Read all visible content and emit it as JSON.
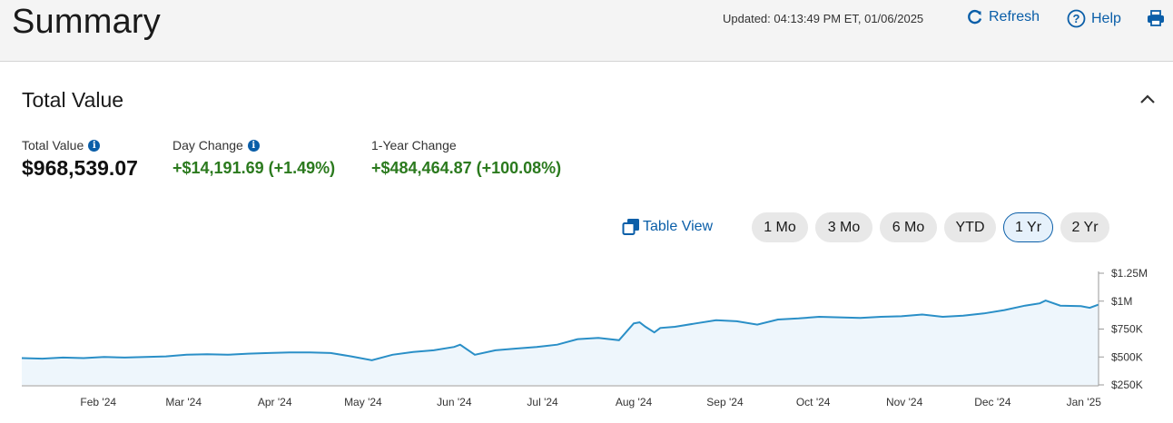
{
  "header": {
    "title": "Summary",
    "updated": "Updated: 04:13:49 PM ET, 01/06/2025",
    "refresh_label": "Refresh",
    "help_label": "Help"
  },
  "section": {
    "title": "Total Value"
  },
  "metrics": {
    "total_label": "Total Value",
    "total_value": "$968,539.07",
    "day_label": "Day Change",
    "day_value": "+$14,191.69 (+1.49%)",
    "year_label": "1-Year Change",
    "year_value": "+$484,464.87 (+100.08%)"
  },
  "controls": {
    "table_view_label": "Table View",
    "ranges": [
      "1 Mo",
      "3 Mo",
      "6 Mo",
      "YTD",
      "1 Yr",
      "2 Yr"
    ],
    "active_range": "1 Yr"
  },
  "colors": {
    "accent": "#0a5ea8",
    "positive": "#2b7a1e",
    "line": "#2a8fc7",
    "fill": "#eef6fc"
  },
  "chart_data": {
    "type": "area",
    "x_tick_labels": [
      "Feb '24",
      "Mar '24",
      "Apr '24",
      "May '24",
      "Jun '24",
      "Jul '24",
      "Aug '24",
      "Sep '24",
      "Oct '24",
      "Nov '24",
      "Dec '24",
      "Jan '25"
    ],
    "y_tick_labels": [
      "$1.25M",
      "$1M",
      "$750K",
      "$500K",
      "$250K"
    ],
    "ylim": [
      250000,
      1250000
    ],
    "y_axis_position": "right",
    "grid": false,
    "series": [
      {
        "x": [
          "2024-01-06",
          "2024-01-13",
          "2024-01-20",
          "2024-01-27",
          "2024-02-03",
          "2024-02-10",
          "2024-02-17",
          "2024-02-24",
          "2024-03-02",
          "2024-03-09",
          "2024-03-16",
          "2024-03-23",
          "2024-03-30",
          "2024-04-06",
          "2024-04-13",
          "2024-04-20",
          "2024-04-27",
          "2024-05-04",
          "2024-05-11",
          "2024-05-18",
          "2024-05-25",
          "2024-06-01",
          "2024-06-03",
          "2024-06-08",
          "2024-06-15",
          "2024-06-22",
          "2024-06-29",
          "2024-07-06",
          "2024-07-13",
          "2024-07-20",
          "2024-07-27",
          "2024-08-01",
          "2024-08-03",
          "2024-08-05",
          "2024-08-08",
          "2024-08-10",
          "2024-08-15",
          "2024-08-22",
          "2024-08-29",
          "2024-09-05",
          "2024-09-12",
          "2024-09-19",
          "2024-09-26",
          "2024-10-03",
          "2024-10-10",
          "2024-10-17",
          "2024-10-24",
          "2024-10-31",
          "2024-11-07",
          "2024-11-14",
          "2024-11-21",
          "2024-11-28",
          "2024-12-05",
          "2024-12-12",
          "2024-12-17",
          "2024-12-19",
          "2024-12-24",
          "2024-12-31",
          "2025-01-03",
          "2025-01-06"
        ],
        "values": [
          490000,
          485000,
          495000,
          490000,
          500000,
          495000,
          500000,
          505000,
          520000,
          525000,
          520000,
          530000,
          535000,
          540000,
          540000,
          535000,
          505000,
          470000,
          520000,
          545000,
          560000,
          590000,
          610000,
          520000,
          560000,
          575000,
          590000,
          610000,
          660000,
          670000,
          650000,
          800000,
          810000,
          770000,
          720000,
          760000,
          770000,
          800000,
          830000,
          820000,
          790000,
          835000,
          845000,
          860000,
          855000,
          850000,
          860000,
          865000,
          880000,
          860000,
          870000,
          890000,
          920000,
          960000,
          980000,
          1005000,
          960000,
          955000,
          940000,
          968539
        ]
      }
    ]
  }
}
